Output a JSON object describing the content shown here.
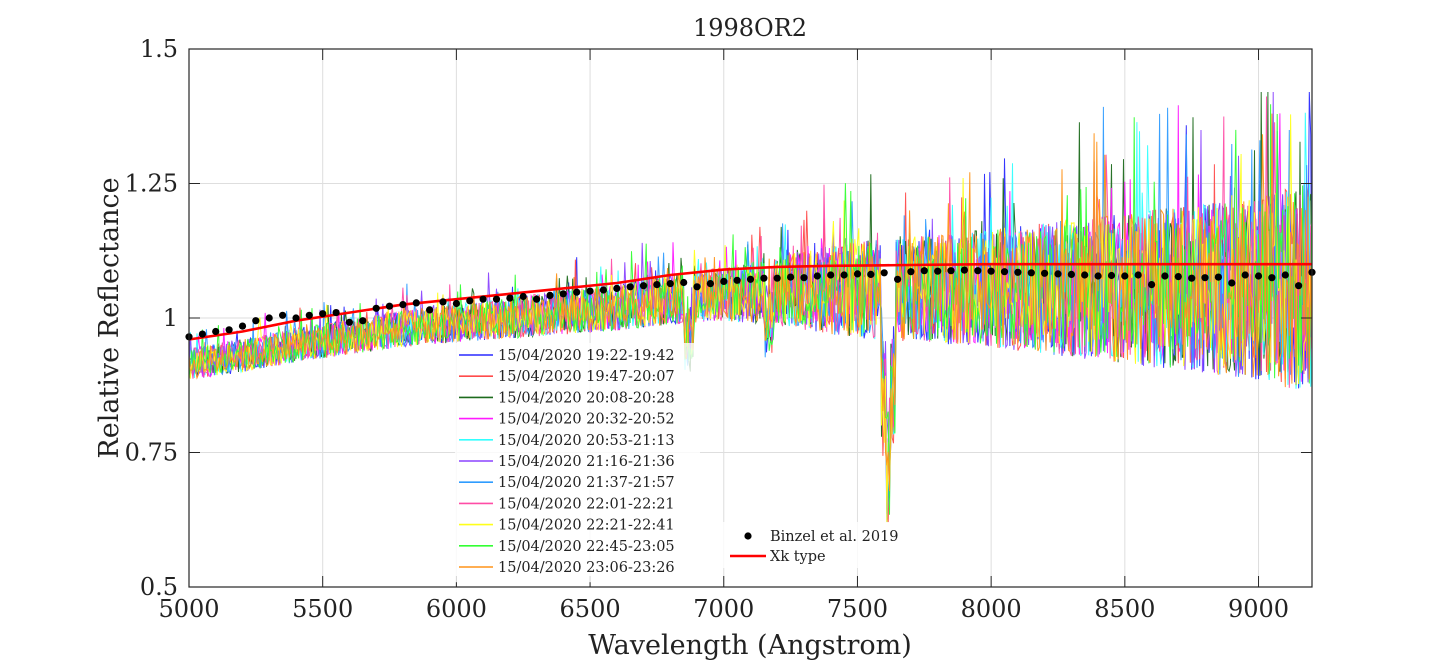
{
  "chart_data": {
    "type": "line",
    "title": "1998OR2",
    "xlabel": "Wavelength (Angstrom)",
    "ylabel": "Relative Reflectance",
    "xlim": [
      5000,
      9200
    ],
    "ylim": [
      0.5,
      1.5
    ],
    "x_ticks": [
      5000,
      5500,
      6000,
      6500,
      7000,
      7500,
      8000,
      8500,
      9000
    ],
    "x_tick_labels": [
      "5000",
      "5500",
      "6000",
      "6500",
      "7000",
      "7500",
      "8000",
      "8500",
      "9000"
    ],
    "y_ticks": [
      0.5,
      0.75,
      1.0,
      1.25,
      1.5
    ],
    "y_tick_labels": [
      "0.5",
      "0.75",
      "1",
      "1.25",
      "1.5"
    ],
    "grid": true,
    "legend_placement": "lower-center",
    "spectra": {
      "step": 5,
      "noise_envelope": [
        [
          5000,
          0.03
        ],
        [
          6000,
          0.035
        ],
        [
          7000,
          0.05
        ],
        [
          7500,
          0.09
        ],
        [
          8000,
          0.11
        ],
        [
          8500,
          0.14
        ],
        [
          9000,
          0.17
        ],
        [
          9200,
          0.2
        ]
      ],
      "absorption_features": [
        [
          6870,
          0.09
        ],
        [
          7170,
          0.06
        ],
        [
          7605,
          0.2
        ],
        [
          7625,
          0.2
        ]
      ]
    },
    "series": [
      {
        "name": "15/04/2020 19:22-19:42",
        "color": "#2a2aff"
      },
      {
        "name": "15/04/2020 19:47-20:07",
        "color": "#ff4b4b"
      },
      {
        "name": "15/04/2020 20:08-20:28",
        "color": "#1d6b1d"
      },
      {
        "name": "15/04/2020 20:32-20:52",
        "color": "#ff1aff"
      },
      {
        "name": "15/04/2020 20:53-21:13",
        "color": "#33ffff"
      },
      {
        "name": "15/04/2020 21:16-21:36",
        "color": "#8b44ff"
      },
      {
        "name": "15/04/2020 21:37-21:57",
        "color": "#2f9cff"
      },
      {
        "name": "15/04/2020 22:01-22:21",
        "color": "#ff4da6"
      },
      {
        "name": "15/04/2020 22:21-22:41",
        "color": "#ffff1a"
      },
      {
        "name": "15/04/2020 22:45-23:05",
        "color": "#33ff33"
      },
      {
        "name": "15/04/2020 23:06-23:26",
        "color": "#ff9419"
      }
    ],
    "binzel": {
      "name": "Binzel et al. 2019",
      "color": "#000000",
      "x": [
        5000,
        5050,
        5100,
        5150,
        5200,
        5250,
        5300,
        5350,
        5400,
        5450,
        5500,
        5550,
        5600,
        5650,
        5700,
        5750,
        5800,
        5850,
        5900,
        5950,
        6000,
        6050,
        6100,
        6150,
        6200,
        6250,
        6300,
        6350,
        6400,
        6450,
        6500,
        6550,
        6600,
        6650,
        6700,
        6750,
        6800,
        6850,
        6900,
        6950,
        7000,
        7050,
        7100,
        7150,
        7200,
        7250,
        7300,
        7350,
        7400,
        7450,
        7500,
        7550,
        7600,
        7650,
        7700,
        7750,
        7800,
        7850,
        7900,
        7950,
        8000,
        8050,
        8100,
        8150,
        8200,
        8250,
        8300,
        8350,
        8400,
        8450,
        8500,
        8550,
        8600,
        8650,
        8700,
        8750,
        8800,
        8850,
        8900,
        8950,
        9000,
        9050,
        9100,
        9150,
        9200
      ],
      "y": [
        0.965,
        0.97,
        0.975,
        0.978,
        0.985,
        0.995,
        1.0,
        1.005,
        1.0,
        1.005,
        1.008,
        1.01,
        0.992,
        0.995,
        1.018,
        1.022,
        1.025,
        1.028,
        1.015,
        1.03,
        1.027,
        1.032,
        1.035,
        1.035,
        1.037,
        1.04,
        1.035,
        1.042,
        1.045,
        1.048,
        1.05,
        1.052,
        1.055,
        1.058,
        1.06,
        1.062,
        1.064,
        1.066,
        1.058,
        1.064,
        1.068,
        1.07,
        1.072,
        1.074,
        1.074,
        1.076,
        1.075,
        1.078,
        1.08,
        1.08,
        1.082,
        1.081,
        1.084,
        1.072,
        1.086,
        1.088,
        1.087,
        1.088,
        1.089,
        1.088,
        1.087,
        1.086,
        1.085,
        1.084,
        1.083,
        1.082,
        1.081,
        1.08,
        1.078,
        1.079,
        1.078,
        1.08,
        1.062,
        1.078,
        1.077,
        1.074,
        1.075,
        1.076,
        1.065,
        1.08,
        1.078,
        1.075,
        1.08,
        1.06,
        1.085
      ]
    },
    "xk_type": {
      "name": "Xk type",
      "color": "#ff0000",
      "x": [
        5000,
        5200,
        5400,
        5600,
        5800,
        6000,
        6200,
        6400,
        6600,
        6800,
        7000,
        7200,
        7400,
        7600,
        7800,
        8000,
        8200,
        8400,
        8600,
        8800,
        9000,
        9200
      ],
      "y": [
        0.96,
        0.975,
        0.995,
        1.01,
        1.025,
        1.035,
        1.045,
        1.055,
        1.065,
        1.08,
        1.09,
        1.095,
        1.097,
        1.098,
        1.099,
        1.1,
        1.1,
        1.1,
        1.1,
        1.1,
        1.1,
        1.1
      ]
    }
  }
}
